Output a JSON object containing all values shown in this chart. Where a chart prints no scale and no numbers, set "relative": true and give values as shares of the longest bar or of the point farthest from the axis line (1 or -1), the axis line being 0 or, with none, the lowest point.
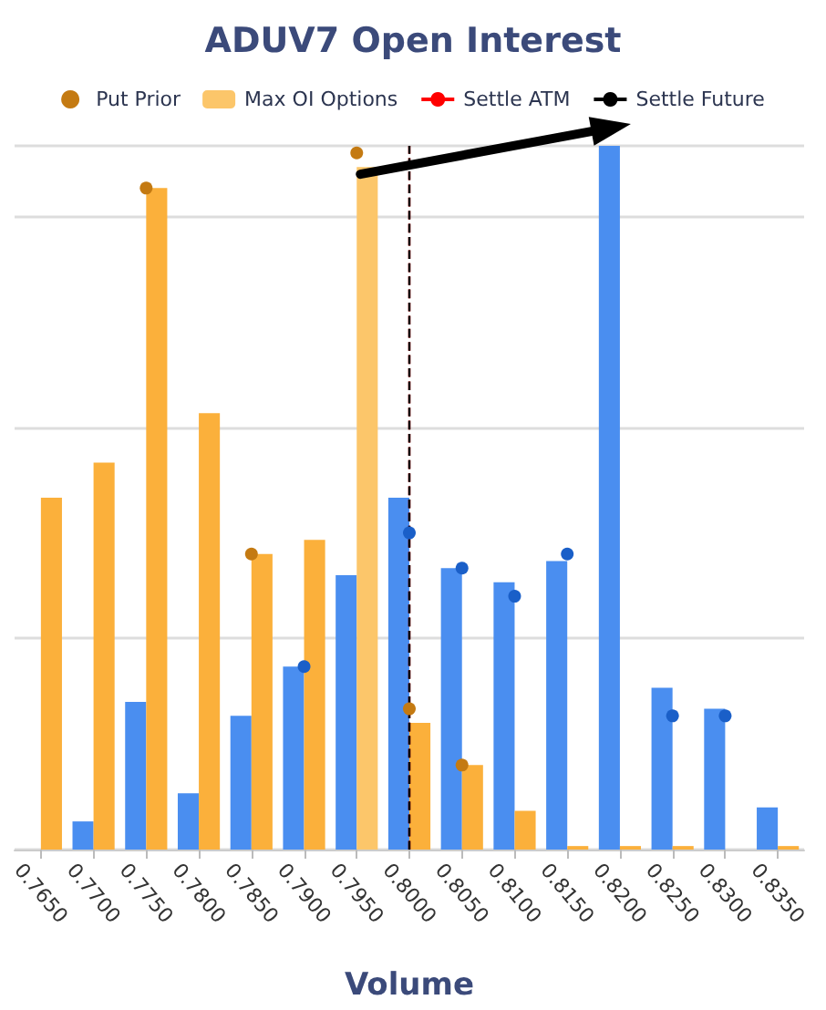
{
  "chart_data": {
    "type": "bar",
    "title": "ADUV7 Open Interest",
    "xlabel": "Volume",
    "relative": true,
    "categories": [
      "0.7650",
      "0.7700",
      "0.7750",
      "0.7800",
      "0.7850",
      "0.7900",
      "0.7950",
      "0.8000",
      "0.8050",
      "0.8100",
      "0.8150",
      "0.8200",
      "0.8250",
      "0.8300",
      "0.8350"
    ],
    "series": [
      {
        "color": "#4a8ef0",
        "values": [
          null,
          0.04,
          0.21,
          0.08,
          0.19,
          0.26,
          0.39,
          0.5,
          0.4,
          0.38,
          0.41,
          1.0,
          0.23,
          0.2,
          0.06
        ]
      },
      {
        "color": "#fbb03b",
        "colors": [
          "#fbb03b",
          "#fbb03b",
          "#fbb03b",
          "#fbb03b",
          "#fbb03b",
          "#fbb03b",
          "#fcc66a",
          "#fbb03b",
          "#fbb03b",
          "#fbb03b",
          "#fbb03b",
          "#fbb03b",
          "#fbb03b",
          "#fbb03b",
          "#fbb03b"
        ],
        "values": [
          0.5,
          0.55,
          0.94,
          0.62,
          0.42,
          0.44,
          0.97,
          0.18,
          0.12,
          0.055,
          0.005,
          0.005,
          0.005,
          null,
          0.005
        ]
      },
      {
        "name": "Put Prior",
        "type": "scatter",
        "color": "#c47a12",
        "values": [
          null,
          null,
          0.94,
          null,
          0.42,
          null,
          0.99,
          0.2,
          0.12,
          null,
          null,
          null,
          null,
          null,
          null
        ]
      },
      {
        "name": "Max OI Options",
        "color": "#fcc66a",
        "values": [
          null,
          null,
          null,
          null,
          null,
          null,
          null,
          null,
          null,
          null,
          null,
          null,
          null,
          null,
          null
        ]
      },
      {
        "type": "scatter",
        "color": "#1a5fc8",
        "values": [
          null,
          null,
          null,
          null,
          null,
          0.26,
          null,
          0.45,
          0.4,
          0.36,
          0.42,
          null,
          0.19,
          0.19,
          null
        ]
      }
    ],
    "ref_lines": [
      {
        "axis": "x",
        "value": "0.8000",
        "label": "Settle ATM",
        "color": "#ff0000",
        "line_style": "dashed"
      },
      {
        "axis": "x",
        "value": "0.8000",
        "label": "Settle Future",
        "color": "#000000",
        "line_style": "dashed"
      }
    ],
    "marker": "circle",
    "grid": "y",
    "legend": "top"
  }
}
